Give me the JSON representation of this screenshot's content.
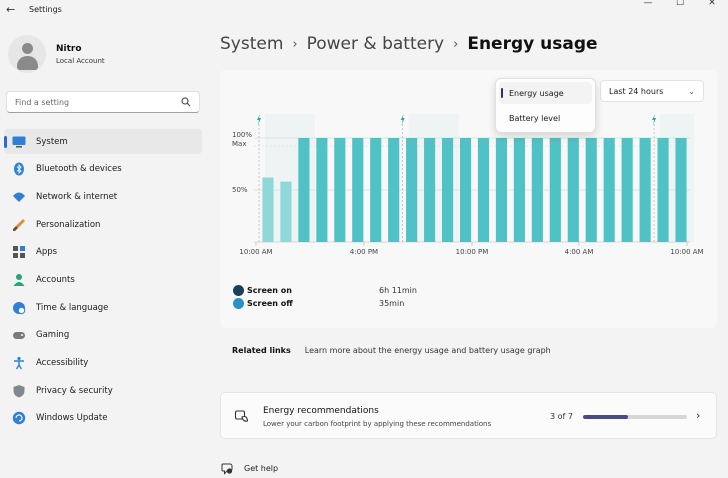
{
  "window": {
    "title": "Settings",
    "back_glyph": "←",
    "controls": [
      "—",
      "☐",
      "✕"
    ]
  },
  "profile": {
    "name": "Nitro",
    "account": "Local Account"
  },
  "search": {
    "placeholder": "Find a setting",
    "icon": "search-icon"
  },
  "sidebar": {
    "items": [
      {
        "label": "System",
        "icon": "monitor-icon",
        "active": true
      },
      {
        "label": "Bluetooth & devices",
        "icon": "bluetooth-icon"
      },
      {
        "label": "Network & internet",
        "icon": "wifi-icon"
      },
      {
        "label": "Personalization",
        "icon": "brush-icon"
      },
      {
        "label": "Apps",
        "icon": "apps-icon"
      },
      {
        "label": "Accounts",
        "icon": "person-icon"
      },
      {
        "label": "Time & language",
        "icon": "globe-clock-icon"
      },
      {
        "label": "Gaming",
        "icon": "gamepad-icon"
      },
      {
        "label": "Accessibility",
        "icon": "accessibility-icon"
      },
      {
        "label": "Privacy & security",
        "icon": "shield-icon"
      },
      {
        "label": "Windows Update",
        "icon": "update-icon"
      }
    ]
  },
  "breadcrumb": {
    "items": [
      "System",
      "Power & battery"
    ],
    "current": "Energy usage",
    "separator": "›"
  },
  "chart_controls": {
    "view_options": [
      "Energy usage",
      "Battery level"
    ],
    "selected_view": "Energy usage",
    "period": "Last 24 hours"
  },
  "chart_data": {
    "type": "bar",
    "ylabels": [
      "100%",
      "Max",
      "50%"
    ],
    "xticks": [
      "10:00 AM",
      "4:00 PM",
      "10:00 PM",
      "4:00 AM",
      "10:00 AM"
    ],
    "ylim": [
      0,
      100
    ],
    "bars": [
      62,
      58,
      100,
      100,
      100,
      100,
      100,
      100,
      100,
      100,
      100,
      100,
      100,
      100,
      100,
      100,
      100,
      100,
      100,
      100,
      100,
      100,
      100,
      100
    ],
    "charging_markers": [
      0,
      8,
      22
    ],
    "bar_color": "#4ec2c4",
    "bar_color_light": "#8ed8d9"
  },
  "legend": [
    {
      "label": "Screen on",
      "value": "6h 11min",
      "color": "#17405a"
    },
    {
      "label": "Screen off",
      "value": "35min",
      "color": "#2b8fc8"
    }
  ],
  "related": {
    "title": "Related links",
    "link": "Learn more about the energy usage and battery usage graph"
  },
  "recommendations": {
    "title": "Energy recommendations",
    "subtitle": "Lower your carbon footprint by applying these recommendations",
    "count": "3 of 7",
    "progress": 0.43,
    "chevron": "›"
  },
  "help": {
    "label": "Get help"
  }
}
